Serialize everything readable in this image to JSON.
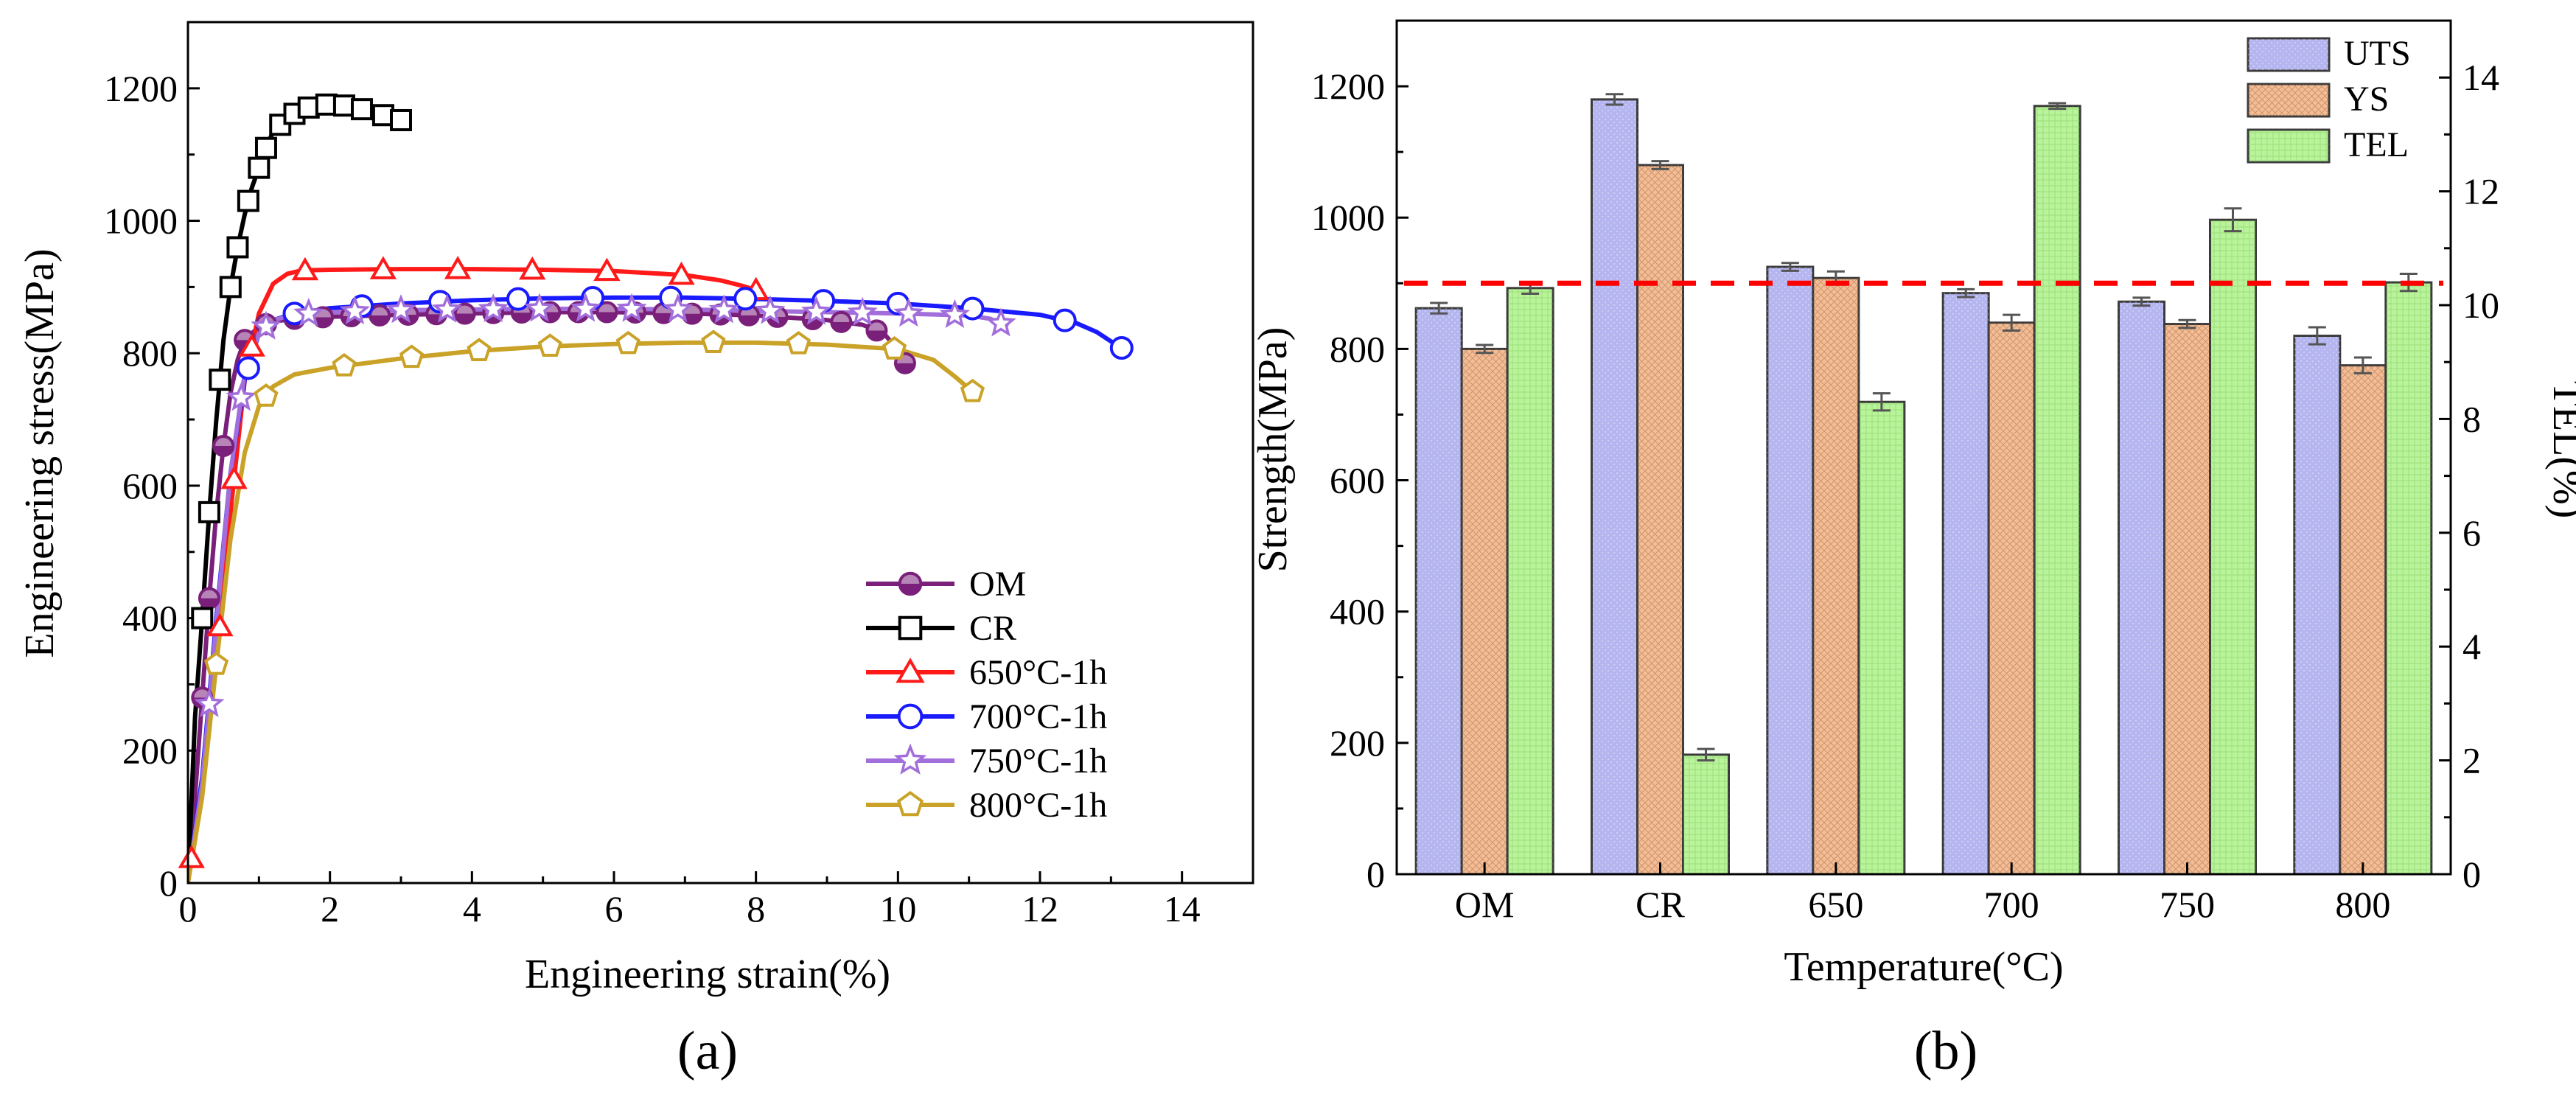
{
  "chart_data": [
    {
      "type": "line",
      "panel_label": "(a)",
      "xlabel": "Engineering strain(%)",
      "ylabel": "Engineering stress(MPa)",
      "xlim": [
        0,
        15
      ],
      "ylim": [
        0,
        1300
      ],
      "xticks": [
        "0",
        "2",
        "4",
        "6",
        "8",
        "10",
        "12",
        "14"
      ],
      "yticks": [
        "0",
        "200",
        "400",
        "600",
        "800",
        "1000",
        "1200"
      ],
      "legend_position": "center-right",
      "series": [
        {
          "name": "OM",
          "color": "#7a1f7a",
          "marker": "circle-filled",
          "x": [
            0,
            0.1,
            0.2,
            0.3,
            0.4,
            0.5,
            0.6,
            0.7,
            0.8,
            1.0,
            1.2,
            1.5,
            2,
            3,
            4,
            5,
            6,
            7,
            8,
            9,
            9.5,
            9.8,
            10.0,
            10.1
          ],
          "y": [
            0,
            130,
            280,
            430,
            560,
            660,
            740,
            790,
            820,
            840,
            848,
            852,
            855,
            858,
            860,
            862,
            862,
            860,
            857,
            850,
            843,
            830,
            805,
            785
          ],
          "marker_x": [
            0.2,
            0.3,
            0.5,
            0.8,
            1.1,
            1.5,
            1.9,
            2.3,
            2.7,
            3.1,
            3.5,
            3.9,
            4.3,
            4.7,
            5.1,
            5.5,
            5.9,
            6.3,
            6.7,
            7.1,
            7.5,
            7.9,
            8.3,
            8.8,
            9.2,
            9.7,
            10.1
          ]
        },
        {
          "name": "CR",
          "color": "#000000",
          "marker": "square",
          "x": [
            0,
            0.1,
            0.2,
            0.3,
            0.4,
            0.5,
            0.6,
            0.7,
            0.8,
            0.9,
            1.0,
            1.1,
            1.2,
            1.4,
            1.6,
            1.8,
            2.0,
            2.2,
            2.4,
            2.6,
            2.8,
            3.0
          ],
          "y": [
            0,
            250,
            400,
            560,
            700,
            820,
            900,
            960,
            1010,
            1050,
            1080,
            1110,
            1135,
            1155,
            1168,
            1174,
            1176,
            1174,
            1170,
            1164,
            1158,
            1152
          ],
          "marker_x": [
            0.2,
            0.3,
            0.45,
            0.6,
            0.7,
            0.85,
            1.0,
            1.1,
            1.3,
            1.5,
            1.7,
            1.95,
            2.2,
            2.45,
            2.75,
            3.0
          ]
        },
        {
          "name": "650°C-1h",
          "color": "#ff1a1a",
          "marker": "triangle",
          "x": [
            0,
            0.2,
            0.4,
            0.6,
            0.8,
            1.0,
            1.2,
            1.4,
            1.6,
            2,
            3,
            4,
            5,
            6,
            7,
            7.5,
            7.8,
            8.1
          ],
          "y": [
            0,
            150,
            330,
            560,
            760,
            860,
            905,
            920,
            925,
            926,
            927,
            927,
            926,
            924,
            918,
            910,
            902,
            892
          ],
          "marker_x": [
            0.05,
            0.45,
            0.65,
            0.9,
            1.65,
            2.75,
            3.8,
            4.85,
            5.9,
            6.95,
            8.0
          ]
        },
        {
          "name": "700°C-1h",
          "color": "#1a1aff",
          "marker": "circle-open",
          "x": [
            0,
            0.2,
            0.4,
            0.6,
            0.8,
            1.0,
            1.2,
            1.5,
            2,
            3,
            4,
            5,
            6,
            7,
            8,
            9,
            10,
            11,
            12,
            12.5,
            12.8,
            13.0,
            13.15
          ],
          "y": [
            0,
            160,
            400,
            620,
            760,
            830,
            850,
            860,
            868,
            875,
            880,
            883,
            884,
            884,
            882,
            879,
            875,
            868,
            858,
            846,
            832,
            818,
            808
          ],
          "marker_x": [
            0.85,
            1.5,
            2.45,
            3.55,
            4.65,
            5.7,
            6.8,
            7.85,
            8.95,
            10.0,
            11.05,
            12.35,
            13.15
          ]
        },
        {
          "name": "750°C-1h",
          "color": "#a26edb",
          "marker": "star",
          "x": [
            0,
            0.2,
            0.4,
            0.6,
            0.8,
            1.0,
            1.2,
            1.5,
            2,
            3,
            4,
            5,
            6,
            7,
            8,
            9,
            10,
            11,
            11.3,
            11.55
          ],
          "y": [
            0,
            150,
            390,
            620,
            770,
            830,
            850,
            858,
            862,
            865,
            866,
            867,
            867,
            866,
            864,
            862,
            860,
            857,
            852,
            840
          ],
          "marker_x": [
            0.3,
            0.75,
            1.1,
            1.7,
            2.35,
            3.0,
            3.65,
            4.3,
            4.95,
            5.6,
            6.25,
            6.9,
            7.55,
            8.2,
            8.85,
            9.5,
            10.15,
            10.8,
            11.45
          ]
        },
        {
          "name": "800°C-1h",
          "color": "#c9a227",
          "marker": "pentagon",
          "x": [
            0,
            0.2,
            0.4,
            0.6,
            0.8,
            1.0,
            1.2,
            1.5,
            2,
            3,
            4,
            5,
            6,
            7,
            8,
            9,
            10,
            10.5,
            10.8,
            11.05
          ],
          "y": [
            0,
            130,
            330,
            520,
            650,
            720,
            750,
            768,
            778,
            792,
            803,
            810,
            814,
            816,
            816,
            813,
            806,
            790,
            765,
            742
          ],
          "marker_x": [
            0.4,
            1.1,
            2.2,
            3.15,
            4.1,
            5.1,
            6.2,
            7.4,
            8.6,
            9.95,
            11.05
          ]
        }
      ]
    },
    {
      "type": "bar",
      "panel_label": "(b)",
      "xlabel": "Temperature(°C)",
      "ylabel": "Strength(MPa)",
      "y2label": "TEL(%)",
      "categories": [
        "OM",
        "CR",
        "650",
        "700",
        "750",
        "800"
      ],
      "ylim": [
        0,
        1300
      ],
      "y2lim": [
        0,
        15
      ],
      "yticks": [
        "0",
        "200",
        "400",
        "600",
        "800",
        "1000",
        "1200"
      ],
      "y2ticks": [
        "0",
        "2",
        "4",
        "6",
        "8",
        "10",
        "12",
        "14"
      ],
      "reference_line": {
        "y": 900,
        "color": "#ff0000",
        "style": "dashed"
      },
      "legend_position": "top-right",
      "series": [
        {
          "name": "UTS",
          "axis": "left",
          "color": "#b5b5f0",
          "values": [
            862,
            1180,
            925,
            885,
            872,
            820
          ],
          "errors": [
            8,
            8,
            6,
            6,
            6,
            13
          ]
        },
        {
          "name": "YS",
          "axis": "left",
          "color": "#f4bd96",
          "values": [
            800,
            1080,
            908,
            840,
            838,
            775
          ],
          "errors": [
            6,
            6,
            10,
            12,
            6,
            12
          ]
        },
        {
          "name": "TEL",
          "axis": "right",
          "color": "#b9f39a",
          "values": [
            10.3,
            2.1,
            8.3,
            13.5,
            11.5,
            10.4
          ],
          "errors": [
            0.1,
            0.1,
            0.15,
            0.05,
            0.2,
            0.15
          ]
        }
      ]
    }
  ]
}
